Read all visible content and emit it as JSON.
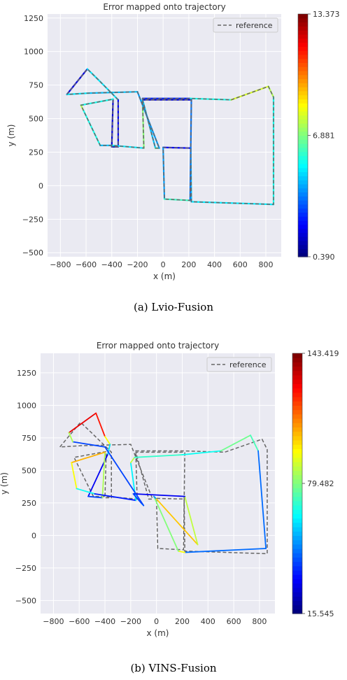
{
  "chart_data": [
    {
      "type": "line",
      "title": "Error mapped onto trajectory",
      "xlabel": "x (m)",
      "ylabel": "y (m)",
      "xlim": [
        -900,
        920
      ],
      "ylim": [
        -530,
        1280
      ],
      "xticks": [
        -800,
        -600,
        -400,
        -200,
        0,
        200,
        400,
        600,
        800
      ],
      "yticks": [
        -500,
        -250,
        0,
        250,
        500,
        750,
        1000,
        1250
      ],
      "xtick_labels": [
        "−800",
        "−600",
        "−400",
        "−200",
        "0",
        "200",
        "400",
        "600",
        "800"
      ],
      "ytick_labels": [
        "−500",
        "−250",
        "0",
        "250",
        "500",
        "750",
        "1000",
        "1250"
      ],
      "grid": true,
      "legend": {
        "position": "top-right",
        "entries": [
          "reference"
        ]
      },
      "colorbar": {
        "min": 0.39,
        "max": 13.373,
        "labels": [
          "13.373",
          "6.881",
          "0.390"
        ],
        "colormap": "jet"
      },
      "series": [
        {
          "role": "reference",
          "points": [
            [
              -750,
              680
            ],
            [
              -590,
              870
            ],
            [
              -505,
              790
            ],
            [
              -350,
              640
            ],
            [
              -350,
              290
            ],
            [
              -400,
              290
            ],
            [
              -390,
              645
            ],
            [
              -640,
              600
            ],
            [
              -620,
              560
            ],
            [
              -490,
              300
            ],
            [
              -400,
              300
            ],
            [
              -150,
              280
            ],
            [
              -160,
              620
            ],
            [
              -160,
              650
            ],
            [
              210,
              650
            ],
            [
              530,
              640
            ],
            [
              820,
              740
            ],
            [
              860,
              660
            ],
            [
              860,
              -140
            ],
            [
              220,
              -120
            ],
            [
              215,
              280
            ],
            [
              0,
              285
            ],
            [
              10,
              -100
            ],
            [
              210,
              -110
            ],
            [
              220,
              640
            ],
            [
              -160,
              640
            ],
            [
              -60,
              280
            ],
            [
              -30,
              280
            ],
            [
              -200,
              700
            ],
            [
              -580,
              690
            ],
            [
              -750,
              680
            ]
          ]
        },
        {
          "role": "estimate",
          "points": [
            [
              -750,
              680
            ],
            [
              -590,
              870
            ],
            [
              -505,
              790
            ],
            [
              -350,
              640
            ],
            [
              -350,
              290
            ],
            [
              -400,
              290
            ],
            [
              -390,
              645
            ],
            [
              -640,
              600
            ],
            [
              -620,
              560
            ],
            [
              -490,
              300
            ],
            [
              -400,
              300
            ],
            [
              -150,
              280
            ],
            [
              -160,
              620
            ],
            [
              -160,
              650
            ],
            [
              210,
              650
            ],
            [
              530,
              640
            ],
            [
              820,
              740
            ],
            [
              860,
              660
            ],
            [
              860,
              -140
            ],
            [
              220,
              -120
            ],
            [
              215,
              280
            ],
            [
              0,
              285
            ],
            [
              10,
              -100
            ],
            [
              210,
              -110
            ],
            [
              220,
              640
            ],
            [
              -160,
              640
            ],
            [
              -60,
              280
            ],
            [
              -30,
              280
            ],
            [
              -200,
              700
            ],
            [
              -580,
              690
            ],
            [
              -750,
              680
            ]
          ],
          "errors": [
            0.39,
            3,
            7,
            3,
            1,
            1,
            2,
            9,
            6,
            5,
            4,
            6,
            8,
            3,
            2,
            9,
            7,
            8,
            3,
            7,
            2,
            2,
            6,
            6,
            1,
            2,
            7,
            6,
            2,
            7,
            3
          ]
        }
      ],
      "caption": "(a)  Lvio-Fusion"
    },
    {
      "type": "line",
      "title": "Error mapped onto trajectory",
      "xlabel": "x (m)",
      "ylabel": "y (m)",
      "xlim": [
        -900,
        920
      ],
      "ylim": [
        -600,
        1400
      ],
      "xticks": [
        -800,
        -600,
        -400,
        -200,
        0,
        200,
        400,
        600,
        800
      ],
      "yticks": [
        -500,
        -250,
        0,
        250,
        500,
        750,
        1000,
        1250
      ],
      "xtick_labels": [
        "−800",
        "−600",
        "−400",
        "−200",
        "0",
        "200",
        "400",
        "600",
        "800"
      ],
      "ytick_labels": [
        "−500",
        "−250",
        "0",
        "250",
        "500",
        "750",
        "1000",
        "1250"
      ],
      "grid": true,
      "legend": {
        "position": "top-right",
        "entries": [
          "reference"
        ]
      },
      "colorbar": {
        "min": 15.545,
        "max": 143.419,
        "labels": [
          "143.419",
          "79.482",
          "15.545"
        ],
        "colormap": "jet"
      },
      "series": [
        {
          "role": "reference",
          "points": [
            [
              -750,
              680
            ],
            [
              -590,
              870
            ],
            [
              -505,
              790
            ],
            [
              -350,
              640
            ],
            [
              -350,
              290
            ],
            [
              -400,
              290
            ],
            [
              -390,
              645
            ],
            [
              -640,
              600
            ],
            [
              -620,
              560
            ],
            [
              -490,
              300
            ],
            [
              -400,
              300
            ],
            [
              -150,
              280
            ],
            [
              -160,
              620
            ],
            [
              -160,
              650
            ],
            [
              210,
              650
            ],
            [
              530,
              640
            ],
            [
              820,
              740
            ],
            [
              860,
              660
            ],
            [
              860,
              -140
            ],
            [
              220,
              -120
            ],
            [
              215,
              280
            ],
            [
              0,
              285
            ],
            [
              10,
              -100
            ],
            [
              210,
              -110
            ],
            [
              220,
              640
            ],
            [
              -160,
              640
            ],
            [
              -60,
              280
            ],
            [
              -30,
              280
            ],
            [
              -200,
              700
            ],
            [
              -580,
              690
            ],
            [
              -750,
              680
            ]
          ]
        },
        {
          "role": "estimate",
          "points": [
            [
              -680,
              790
            ],
            [
              -470,
              940
            ],
            [
              -400,
              760
            ],
            [
              -360,
              700
            ],
            [
              -380,
              620
            ],
            [
              -530,
              300
            ],
            [
              -420,
              290
            ],
            [
              -400,
              640
            ],
            [
              -660,
              560
            ],
            [
              -620,
              360
            ],
            [
              -480,
              320
            ],
            [
              -160,
              270
            ],
            [
              -200,
              560
            ],
            [
              -170,
              600
            ],
            [
              200,
              620
            ],
            [
              500,
              650
            ],
            [
              730,
              770
            ],
            [
              790,
              650
            ],
            [
              850,
              -100
            ],
            [
              220,
              -130
            ],
            [
              170,
              -120
            ],
            [
              -20,
              300
            ],
            [
              0,
              280
            ],
            [
              320,
              -70
            ],
            [
              220,
              300
            ],
            [
              -180,
              320
            ],
            [
              -110,
              240
            ],
            [
              -100,
              230
            ],
            [
              -400,
              680
            ],
            [
              -650,
              720
            ],
            [
              -680,
              790
            ]
          ],
          "errors": [
            120,
            140,
            110,
            80,
            40,
            20,
            60,
            110,
            100,
            90,
            40,
            30,
            95,
            80,
            60,
            70,
            85,
            60,
            30,
            60,
            130,
            30,
            70,
            135,
            40,
            20,
            60,
            50,
            30,
            50,
            120
          ]
        }
      ],
      "caption": "(b)  VINS-Fusion"
    }
  ]
}
